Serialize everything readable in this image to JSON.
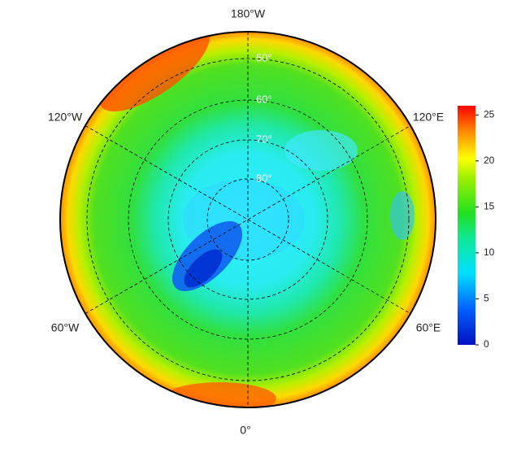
{
  "map": {
    "meridian_labels": [
      "180°W",
      "120°W",
      "120°E",
      "60°W",
      "60°E",
      "0°"
    ],
    "parallel_labels": [
      "50°",
      "60°",
      "70°",
      "80°"
    ]
  },
  "colorbar": {
    "range": [
      0,
      26
    ],
    "ticks": [
      0,
      5,
      10,
      15,
      20,
      25
    ]
  }
}
